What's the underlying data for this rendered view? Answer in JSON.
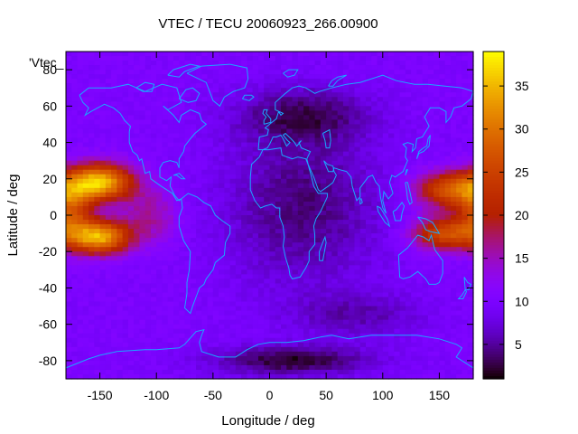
{
  "chart_data": {
    "type": "heatmap",
    "title": "VTEC / TECU 20060923_266.00900",
    "xlabel": "Longitude / deg",
    "ylabel": "Latitude / deg",
    "series_key": "'Vtec_",
    "xlim": [
      -180,
      180
    ],
    "ylim": [
      -90,
      90
    ],
    "x_ticks": [
      -150,
      -100,
      -50,
      0,
      50,
      100,
      150
    ],
    "y_ticks": [
      -80,
      -60,
      -40,
      -20,
      0,
      20,
      40,
      60,
      80
    ],
    "colorbar": {
      "range": [
        1,
        39
      ],
      "ticks": [
        5,
        10,
        15,
        20,
        25,
        30,
        35
      ],
      "palette": "black-purple-red-orange-yellow"
    },
    "grid": false,
    "overlay": "coastlines",
    "features": [
      {
        "name": "equatorial anomaly west",
        "lon_center": -150,
        "lat_center": 5,
        "peak_vtec": 37
      },
      {
        "name": "equatorial anomaly east",
        "lon_center": 160,
        "lat_center": 5,
        "peak_vtec": 28
      },
      {
        "name": "antarctic minimum",
        "lon_center": 20,
        "lat_center": -80,
        "peak_vtec": 2
      },
      {
        "name": "northern trough",
        "lon_center": 30,
        "lat_center": 55,
        "peak_vtec": 4
      }
    ],
    "background_vtec": 10
  }
}
